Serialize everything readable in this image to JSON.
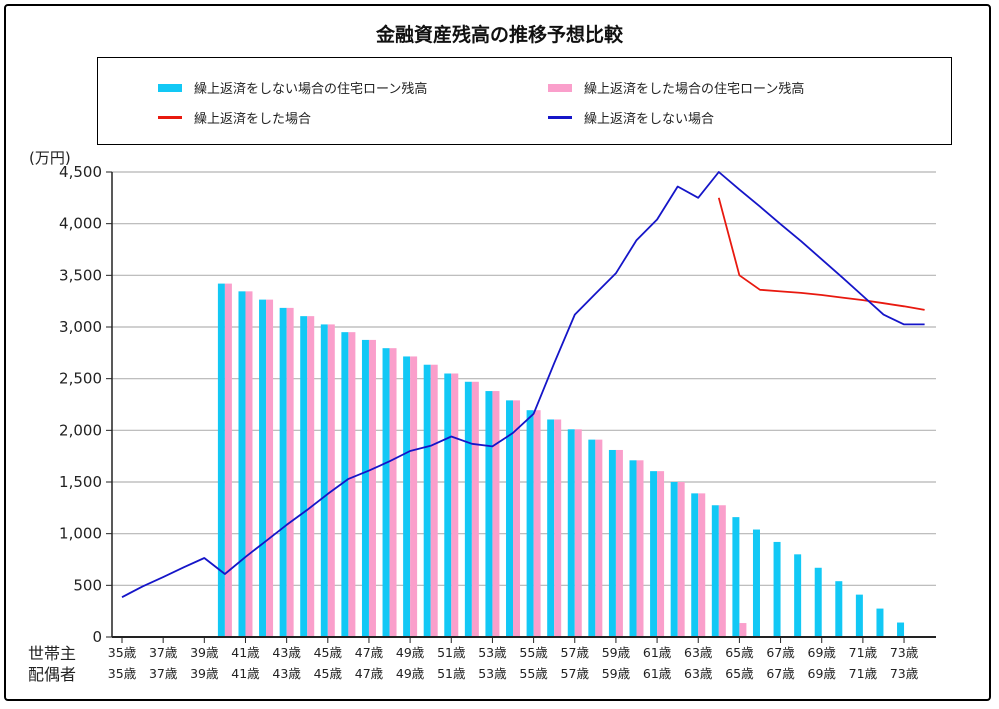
{
  "chart_data": {
    "type": "bar",
    "title": "金融資産残高の推移予想比較",
    "ylabel": "(万円)",
    "xlabel": "",
    "ylim": [
      0,
      4500
    ],
    "yticks": [
      0,
      500,
      1000,
      1500,
      2000,
      2500,
      3000,
      3500,
      4000,
      4500
    ],
    "ytick_labels": [
      "0",
      "500",
      "1,000",
      "1,500",
      "2,000",
      "2,500",
      "3,000",
      "3,500",
      "4,000",
      "4,500"
    ],
    "grid": true,
    "legend_position": "top",
    "row_labels": [
      "世帯主",
      "配偶者"
    ],
    "x_ages": [
      35,
      36,
      37,
      38,
      39,
      40,
      41,
      42,
      43,
      44,
      45,
      46,
      47,
      48,
      49,
      50,
      51,
      52,
      53,
      54,
      55,
      56,
      57,
      58,
      59,
      60,
      61,
      62,
      63,
      64,
      65,
      66,
      67,
      68,
      69,
      70,
      71,
      72,
      73,
      74
    ],
    "tick_labels_head": [
      "35歳",
      "37歳",
      "39歳",
      "41歳",
      "43歳",
      "45歳",
      "47歳",
      "49歳",
      "51歳",
      "53歳",
      "55歳",
      "57歳",
      "59歳",
      "61歳",
      "63歳",
      "65歳",
      "67歳",
      "69歳",
      "71歳",
      "73歳"
    ],
    "tick_labels_spouse": [
      "35歳",
      "37歳",
      "39歳",
      "41歳",
      "43歳",
      "45歳",
      "47歳",
      "49歳",
      "51歳",
      "53歳",
      "55歳",
      "57歳",
      "59歳",
      "61歳",
      "63歳",
      "65歳",
      "67歳",
      "69歳",
      "71歳",
      "73歳"
    ],
    "series": [
      {
        "name": "繰上返済をしない場合の住宅ローン残高",
        "kind": "bar",
        "color": "#12C8F5",
        "values": [
          null,
          null,
          null,
          null,
          null,
          3420,
          3345,
          3265,
          3185,
          3105,
          3025,
          2950,
          2875,
          2795,
          2715,
          2635,
          2550,
          2470,
          2380,
          2290,
          2195,
          2105,
          2010,
          1910,
          1810,
          1710,
          1605,
          1500,
          1390,
          1275,
          1160,
          1040,
          920,
          800,
          670,
          540,
          410,
          275,
          140,
          null
        ]
      },
      {
        "name": "繰上返済をした場合の住宅ローン残高",
        "kind": "bar",
        "color": "#FA9FCB",
        "values": [
          null,
          null,
          null,
          null,
          null,
          3420,
          3345,
          3265,
          3185,
          3105,
          3025,
          2950,
          2875,
          2795,
          2715,
          2635,
          2550,
          2470,
          2380,
          2290,
          2195,
          2105,
          2010,
          1910,
          1810,
          1710,
          1605,
          1500,
          1390,
          1275,
          135,
          null,
          null,
          null,
          null,
          null,
          null,
          null,
          null,
          null
        ]
      },
      {
        "name": "繰上返済をした場合",
        "kind": "line",
        "color": "#E8190F",
        "values": [
          null,
          null,
          null,
          null,
          null,
          null,
          null,
          null,
          null,
          null,
          null,
          null,
          null,
          null,
          null,
          null,
          null,
          null,
          null,
          null,
          null,
          null,
          null,
          null,
          null,
          null,
          null,
          null,
          null,
          4250,
          3500,
          3360,
          3345,
          3330,
          3310,
          3285,
          3260,
          3230,
          3200,
          3165
        ]
      },
      {
        "name": "繰上返済をしない場合",
        "kind": "line",
        "color": "#1515C8",
        "values": [
          385,
          490,
          580,
          675,
          765,
          610,
          775,
          930,
          1085,
          1230,
          1385,
          1530,
          1610,
          1700,
          1800,
          1850,
          1940,
          1870,
          1845,
          1975,
          2160,
          2650,
          3120,
          3320,
          3520,
          3840,
          4040,
          4360,
          4250,
          4500,
          4330,
          4165,
          3995,
          3830,
          3655,
          3480,
          3300,
          3120,
          3025,
          3025
        ]
      }
    ]
  }
}
